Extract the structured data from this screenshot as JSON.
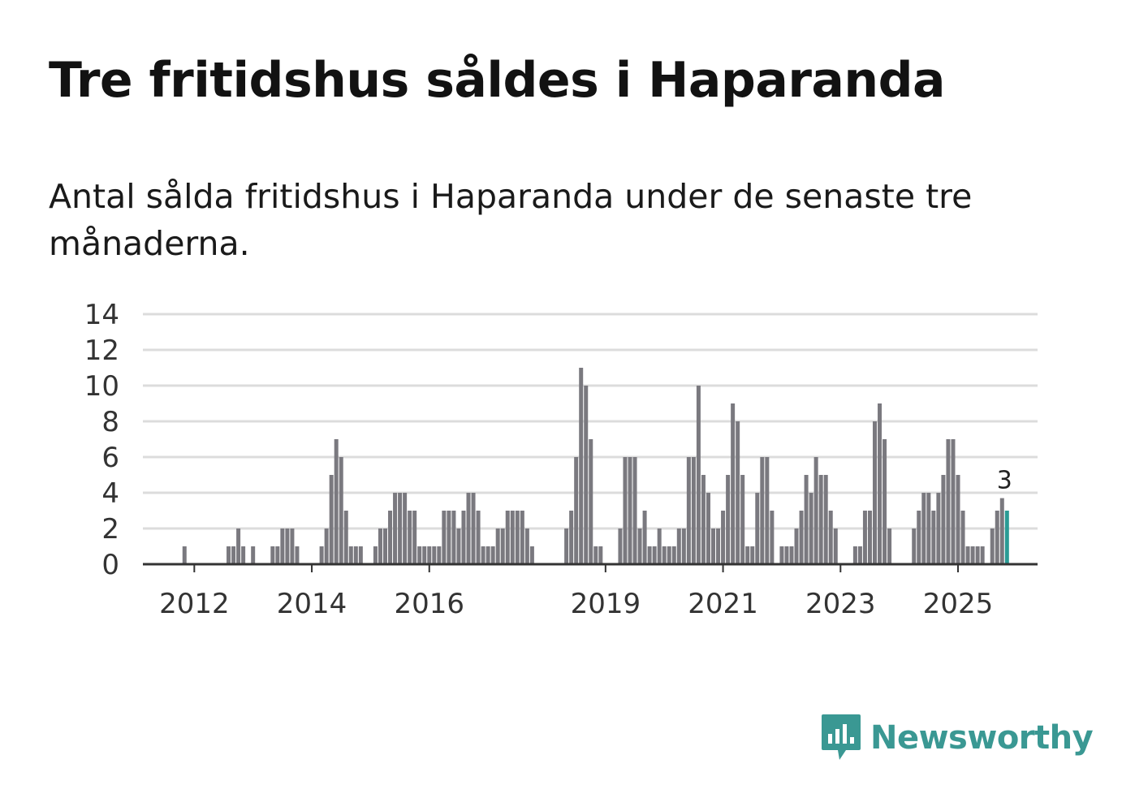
{
  "title": "Tre fritidshus såldes i Haparanda",
  "subtitle": "Antal sålda fritidshus i Haparanda under de senaste tre månaderna.",
  "logo": {
    "name": "Newsworthy",
    "icon": "newsworthy-bar-chart-icon"
  },
  "colors": {
    "bar": "#7a797f",
    "highlight": "#2a9b95",
    "grid": "#dcdcdc",
    "axis": "#333333",
    "brand": "#3a9893"
  },
  "chart_data": {
    "type": "bar",
    "title": "Tre fritidshus såldes i Haparanda",
    "xlabel": "",
    "ylabel": "",
    "ylim": [
      0,
      14
    ],
    "yticks": [
      0,
      2,
      4,
      6,
      8,
      10,
      12,
      14
    ],
    "grid": true,
    "start": {
      "year": 2011,
      "month": 2
    },
    "xticks": [
      {
        "label": "2012",
        "year": 2012
      },
      {
        "label": "2014",
        "year": 2014
      },
      {
        "label": "2016",
        "year": 2016
      },
      {
        "label": "2019",
        "year": 2019
      },
      {
        "label": "2021",
        "year": 2021
      },
      {
        "label": "2023",
        "year": 2023
      },
      {
        "label": "2025",
        "year": 2025
      }
    ],
    "values": [
      0,
      0,
      0,
      0,
      0,
      0,
      0,
      0,
      0,
      1,
      0,
      0,
      0,
      0,
      0,
      0,
      0,
      0,
      1,
      1,
      2,
      1,
      0,
      1,
      0,
      0,
      0,
      1,
      1,
      2,
      2,
      2,
      1,
      0,
      0,
      0,
      0,
      1,
      2,
      5,
      7,
      6,
      3,
      1,
      1,
      1,
      0,
      0,
      1,
      2,
      2,
      3,
      4,
      4,
      4,
      3,
      3,
      1,
      1,
      1,
      1,
      1,
      3,
      3,
      3,
      2,
      3,
      4,
      4,
      3,
      1,
      1,
      1,
      2,
      2,
      3,
      3,
      3,
      3,
      2,
      1,
      0,
      0,
      0,
      0,
      0,
      0,
      2,
      3,
      6,
      11,
      10,
      7,
      1,
      1,
      0,
      0,
      0,
      2,
      6,
      6,
      6,
      2,
      3,
      1,
      1,
      2,
      1,
      1,
      1,
      2,
      2,
      6,
      6,
      10,
      5,
      4,
      2,
      2,
      3,
      5,
      9,
      8,
      5,
      1,
      1,
      4,
      6,
      6,
      3,
      0,
      1,
      1,
      1,
      2,
      3,
      5,
      4,
      6,
      5,
      5,
      3,
      2,
      0,
      0,
      0,
      1,
      1,
      3,
      3,
      8,
      9,
      7,
      2,
      0,
      0,
      0,
      0,
      2,
      3,
      4,
      4,
      3,
      4,
      5,
      7,
      7,
      5,
      3,
      1,
      1,
      1,
      1,
      0,
      2,
      3,
      3.7,
      3
    ],
    "highlight_last": true,
    "annotation": {
      "label": "3"
    }
  }
}
